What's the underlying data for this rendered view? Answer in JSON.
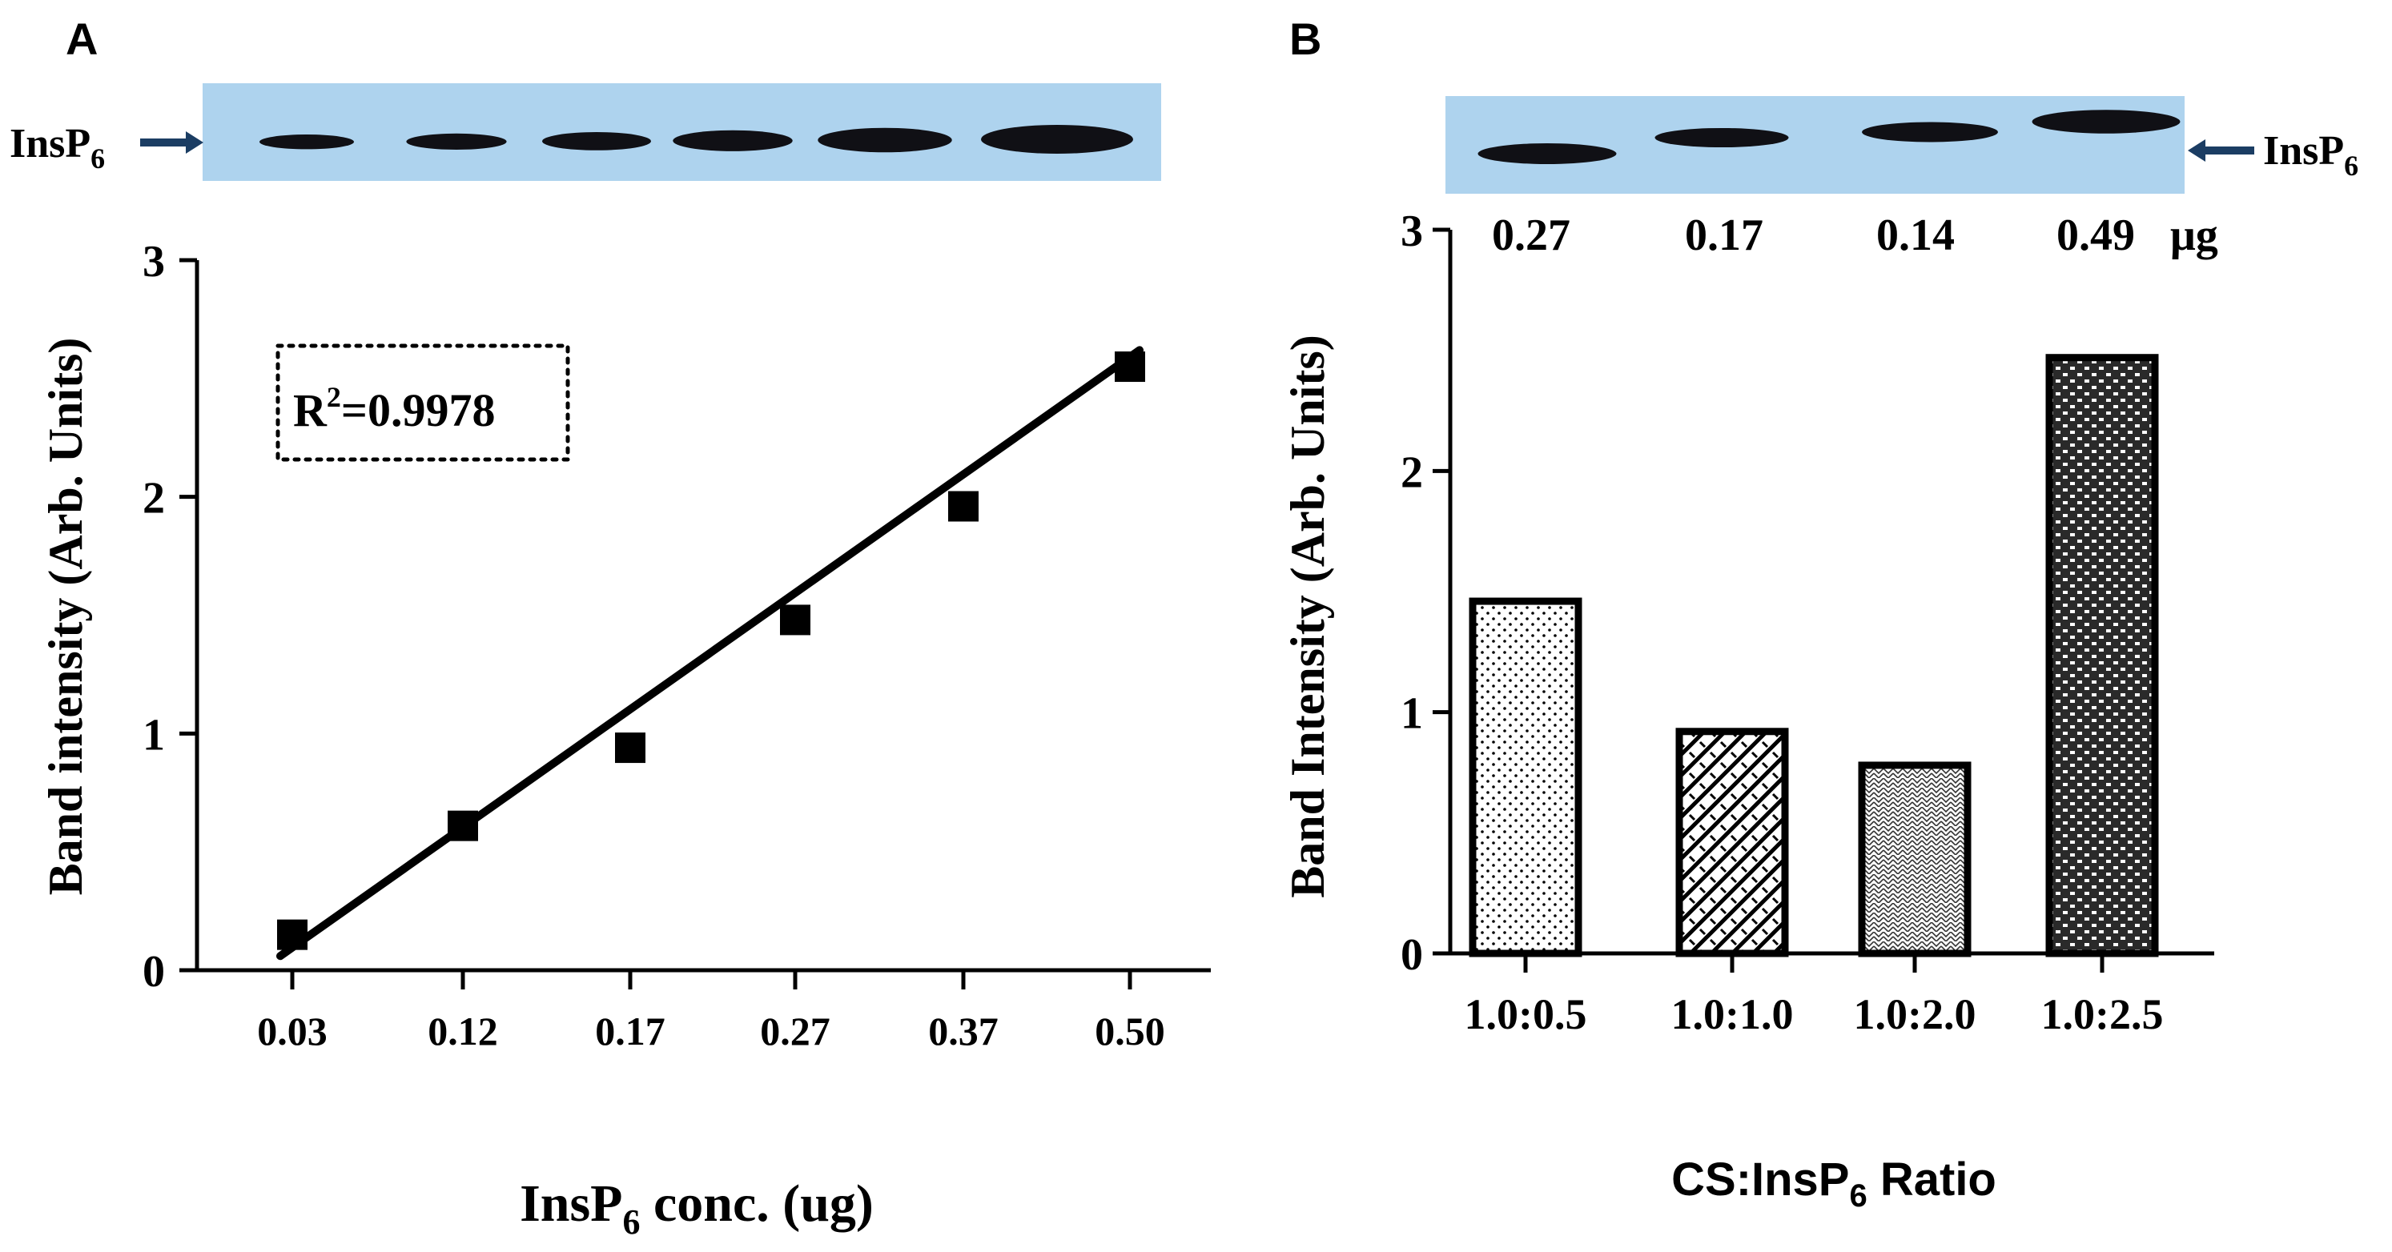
{
  "colors": {
    "blot_background": "#aed3ee",
    "band": "#101015",
    "arrow": "#1b3d63",
    "axis": "#000000"
  },
  "blot_A": {
    "marker_label": "InsP",
    "marker_sub": "6",
    "bands": [
      {
        "lane": "0.03",
        "weight": 0.2
      },
      {
        "lane": "0.12",
        "weight": 0.28
      },
      {
        "lane": "0.17",
        "weight": 0.4
      },
      {
        "lane": "0.27",
        "weight": 0.55
      },
      {
        "lane": "0.37",
        "weight": 0.75
      },
      {
        "lane": "0.50",
        "weight": 1.0
      }
    ]
  },
  "blot_B": {
    "marker_label": "InsP",
    "marker_sub": "6",
    "bands": [
      {
        "lane": "1.0:0.5",
        "weight": 0.55
      },
      {
        "lane": "1.0:1.0",
        "weight": 0.45
      },
      {
        "lane": "1.0:2.0",
        "weight": 0.5
      },
      {
        "lane": "1.0:2.5",
        "weight": 0.75
      }
    ],
    "amounts": [
      "0.27",
      "0.17",
      "0.14",
      "0.49"
    ],
    "amount_unit": "μg"
  },
  "chart_data": [
    {
      "panel": "A",
      "type": "scatter",
      "ylabel": "Band intensity (Arb. Units)",
      "xlabel_main": "InsP",
      "xlabel_sub": "6",
      "xlabel_rest": " conc. (ug)",
      "categories": [
        "0.03",
        "0.12",
        "0.17",
        "0.27",
        "0.37",
        "0.50"
      ],
      "values": [
        0.15,
        0.61,
        0.94,
        1.48,
        1.96,
        2.55
      ],
      "fit_line": {
        "y_start": 0.06,
        "y_end": 2.62
      },
      "annotation": {
        "r_label": "R",
        "r_sup": "2",
        "r_value": "=0.9978"
      },
      "ylim": [
        0,
        3
      ],
      "yticks": [
        "0",
        "1",
        "2",
        "3"
      ]
    },
    {
      "panel": "B",
      "type": "bar",
      "ylabel": "Band Intensity (Arb. Units)",
      "xlabel_main": "CS:InsP",
      "xlabel_sub": "6",
      "xlabel_rest": " Ratio",
      "categories": [
        "1.0:0.5",
        "1.0:1.0",
        "1.0:2.0",
        "1.0:2.5"
      ],
      "values": [
        1.46,
        0.92,
        0.78,
        2.47
      ],
      "patterns": [
        "dots",
        "weave",
        "checker",
        "brick"
      ],
      "ylim": [
        0,
        3
      ],
      "yticks": [
        "0",
        "1",
        "2",
        "3"
      ]
    }
  ]
}
